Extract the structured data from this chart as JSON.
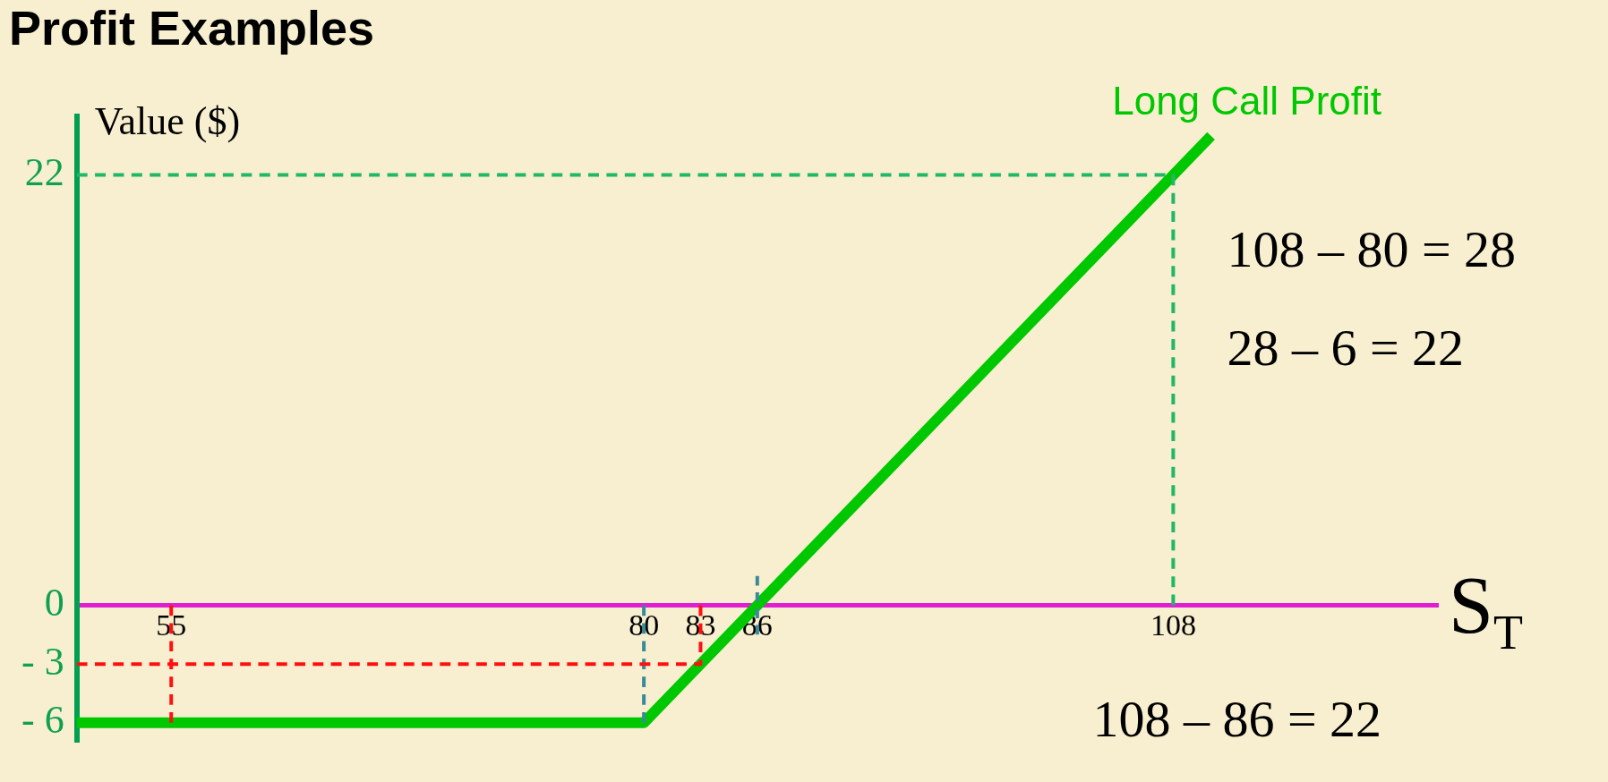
{
  "chart_data": {
    "type": "line",
    "title": "Profit Examples",
    "xlabel": "S$_{T}$",
    "ylabel": "Value ($)",
    "xlim": [
      50,
      122
    ],
    "ylim": [
      -7,
      25
    ],
    "xticks": [
      55,
      80,
      83,
      86,
      108
    ],
    "yticks": [
      {
        "value": -6,
        "label": "- 6"
      },
      {
        "value": -3,
        "label": "- 3"
      },
      0,
      22
    ],
    "grid": false,
    "legend": false,
    "marker": "none",
    "series": [
      {
        "name": "Long Call Profit",
        "color": "#00c800",
        "x": [
          50,
          80,
          86,
          108,
          110
        ],
        "values": [
          -6,
          -6,
          0,
          22,
          24
        ]
      },
      {
        "color": "#20b868",
        "line_style": "dashed",
        "x": [
          50,
          108,
          108
        ],
        "values": [
          22,
          22,
          0
        ]
      },
      {
        "color": "#ff1010",
        "line_style": "dashed",
        "x": [
          50,
          83,
          83
        ],
        "values": [
          -3,
          -3,
          0
        ]
      },
      {
        "color": "#ff1010",
        "line_style": "dashed",
        "x": [
          55,
          55
        ],
        "values": [
          0,
          -6
        ]
      },
      {
        "color": "#3a8a9a",
        "line_style": "dashed",
        "x": [
          80,
          80
        ],
        "values": [
          0,
          -6
        ]
      },
      {
        "color": "#3a8a9a",
        "line_style": "dashed",
        "x": [
          86,
          86
        ],
        "values": [
          1.5,
          -1.5
        ]
      }
    ],
    "annotations": [
      "108 – 80 = 28",
      "28 – 6 = 22",
      "108 – 86 = 22"
    ]
  }
}
